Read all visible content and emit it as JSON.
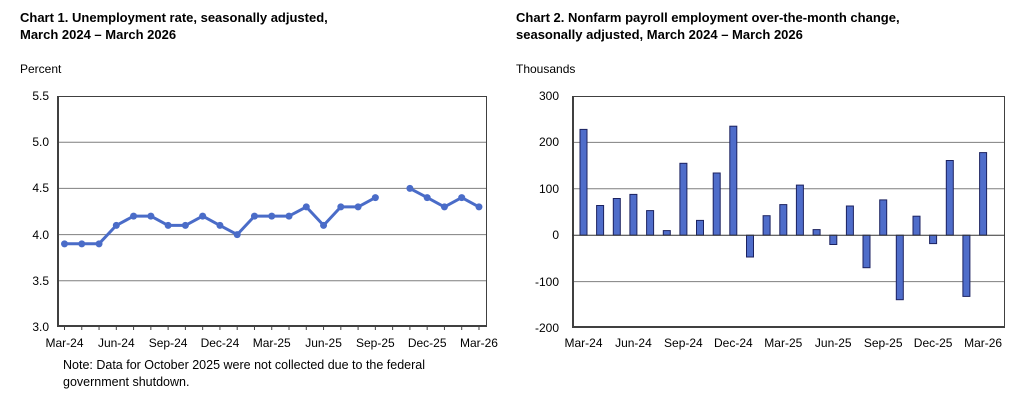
{
  "colors": {
    "series_blue": "#4a6cc8",
    "bar_fill": "#4f6dca",
    "bar_border": "#1c2260",
    "gridline": "#7f7f7f",
    "zero_line": "#333333",
    "frame": "#404040",
    "text": "#000000",
    "background": "#ffffff"
  },
  "chart_data": [
    {
      "type": "line",
      "name": "unemployment-rate",
      "title_lines": [
        "Chart 1. Unemployment rate, seasonally adjusted,",
        "March 2024 – March 2026"
      ],
      "unit_label": "Percent",
      "x": [
        "Mar-24",
        "Apr-24",
        "May-24",
        "Jun-24",
        "Jul-24",
        "Aug-24",
        "Sep-24",
        "Oct-24",
        "Nov-24",
        "Dec-24",
        "Jan-25",
        "Feb-25",
        "Mar-25",
        "Apr-25",
        "May-25",
        "Jun-25",
        "Jul-25",
        "Aug-25",
        "Sep-25",
        "Oct-25",
        "Nov-25",
        "Dec-25",
        "Jan-26",
        "Feb-26",
        "Mar-26"
      ],
      "values": [
        3.9,
        3.9,
        3.9,
        4.1,
        4.2,
        4.2,
        4.1,
        4.1,
        4.2,
        4.1,
        4.0,
        4.2,
        4.2,
        4.2,
        4.3,
        4.1,
        4.3,
        4.3,
        4.4,
        null,
        4.5,
        4.4,
        4.3,
        4.4,
        4.3
      ],
      "ylim": [
        3.0,
        5.5
      ],
      "ytick_labels": [
        "5.5",
        "5.0",
        "4.5",
        "4.0",
        "3.5",
        "3.0"
      ],
      "ytick_values": [
        5.5,
        5.0,
        4.5,
        4.0,
        3.5,
        3.0
      ],
      "xtick_step": 3,
      "grid": true,
      "legend": false,
      "note_lines": [
        "Note: Data for October 2025 were not collected due to the federal",
        "government shutdown."
      ]
    },
    {
      "type": "bar",
      "name": "nonfarm-payroll-change",
      "title_lines": [
        "Chart 2. Nonfarm payroll employment over-the-month change,",
        "seasonally adjusted, March 2024 – March 2026"
      ],
      "unit_label": "Thousands",
      "x": [
        "Mar-24",
        "Apr-24",
        "May-24",
        "Jun-24",
        "Jul-24",
        "Aug-24",
        "Sep-24",
        "Oct-24",
        "Nov-24",
        "Dec-24",
        "Jan-25",
        "Feb-25",
        "Mar-25",
        "Apr-25",
        "May-25",
        "Jun-25",
        "Jul-25",
        "Aug-25",
        "Sep-25",
        "Oct-25",
        "Nov-25",
        "Dec-25",
        "Jan-26",
        "Feb-26",
        "Mar-26"
      ],
      "values": [
        228,
        64,
        79,
        88,
        53,
        10,
        155,
        32,
        134,
        235,
        -47,
        42,
        66,
        108,
        12,
        -20,
        63,
        -70,
        76,
        -139,
        41,
        -18,
        161,
        -132,
        178
      ],
      "ylim": [
        -200,
        300
      ],
      "ytick_labels": [
        "300",
        "200",
        "100",
        "0",
        "-100",
        "-200"
      ],
      "ytick_values": [
        300,
        200,
        100,
        0,
        -100,
        -200
      ],
      "xtick_step": 3,
      "grid": true,
      "legend": false
    }
  ]
}
